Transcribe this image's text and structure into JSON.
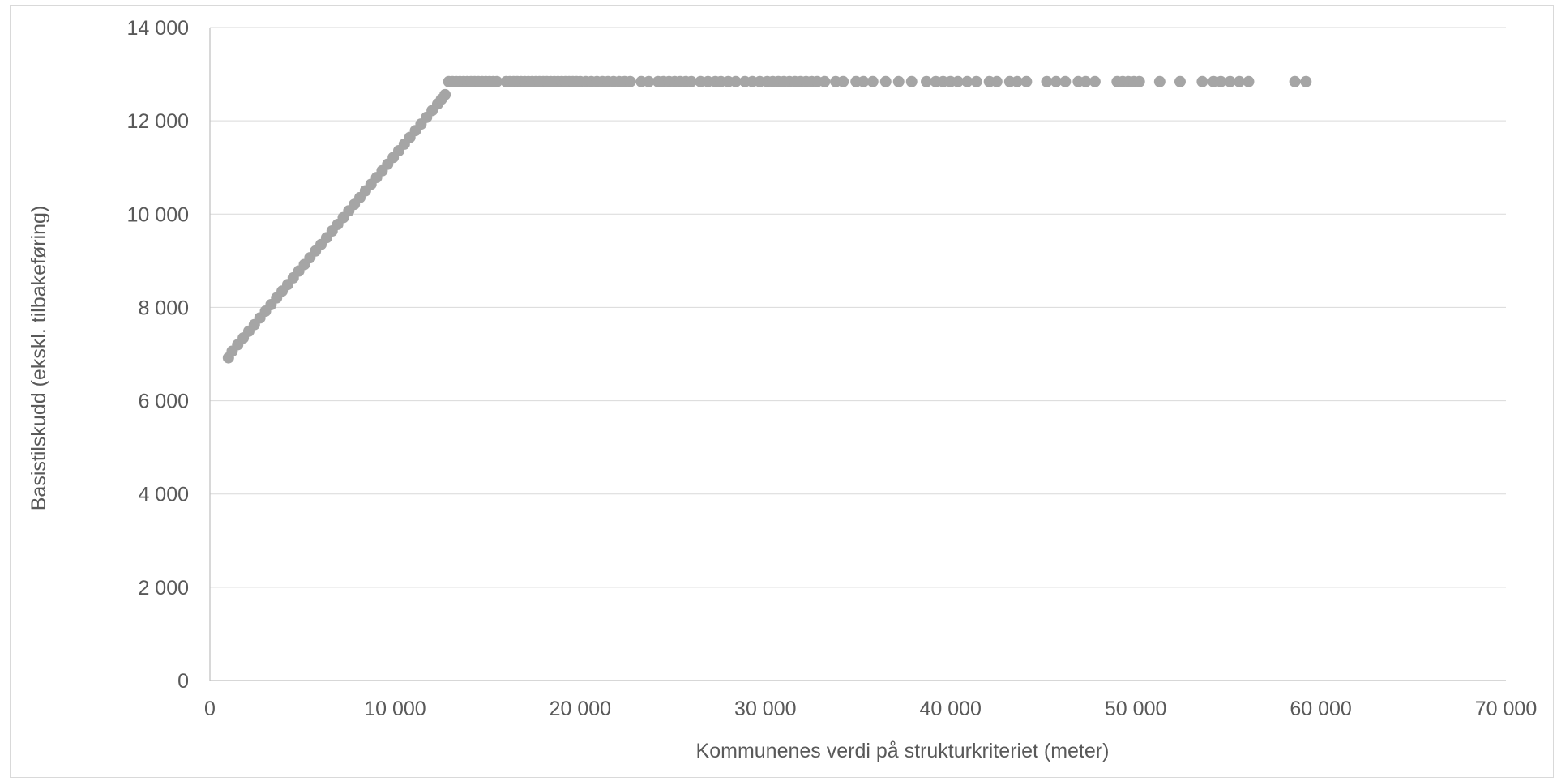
{
  "chart_data": {
    "type": "scatter",
    "title": "",
    "xlabel": "Kommunenes  verdi på strukturkriteriet (meter)",
    "ylabel": "Basistilskudd (ekskl. tilbakeføring)",
    "xlim": [
      0,
      70000
    ],
    "ylim": [
      0,
      14000
    ],
    "x_ticks": [
      0,
      10000,
      20000,
      30000,
      40000,
      50000,
      60000,
      70000
    ],
    "x_tick_labels": [
      "0",
      "10 000",
      "20 000",
      "30 000",
      "40 000",
      "50 000",
      "60 000",
      "70 000"
    ],
    "y_ticks": [
      0,
      2000,
      4000,
      6000,
      8000,
      10000,
      12000,
      14000
    ],
    "y_tick_labels": [
      "0",
      "2 000",
      "4 000",
      "6 000",
      "8 000",
      "10 000",
      "12 000",
      "14 000"
    ],
    "grid": "horizontal",
    "legend": "none",
    "marker_color": "#a5a5a5",
    "series": [
      {
        "ramp": {
          "x": [
            1000,
            1200,
            1500,
            1800,
            2100,
            2400,
            2700,
            3000,
            3300,
            3600,
            3900,
            4200,
            4500,
            4800,
            5100,
            5400,
            5700,
            6000,
            6300,
            6600,
            6900,
            7200,
            7500,
            7800,
            8100,
            8400,
            8700,
            9000,
            9300,
            9600,
            9900,
            10200,
            10500,
            10800,
            11100,
            11400,
            11700,
            12000,
            12300,
            12500,
            12700
          ],
          "y": [
            6920,
            7060,
            7200,
            7345,
            7490,
            7630,
            7775,
            7920,
            8060,
            8205,
            8350,
            8490,
            8635,
            8780,
            8920,
            9065,
            9210,
            9350,
            9495,
            9640,
            9780,
            9925,
            10070,
            10210,
            10355,
            10500,
            10640,
            10785,
            10930,
            11070,
            11215,
            11360,
            11500,
            11645,
            11790,
            11930,
            12075,
            12220,
            12360,
            12460,
            12560
          ]
        },
        "plateau": {
          "y": 12840,
          "x": [
            12900,
            13100,
            13300,
            13500,
            13700,
            13900,
            14100,
            14300,
            14500,
            14700,
            14900,
            15100,
            15300,
            15500,
            16000,
            16200,
            16400,
            16600,
            16800,
            17000,
            17200,
            17400,
            17600,
            17800,
            18000,
            18200,
            18400,
            18600,
            18800,
            19000,
            19200,
            19400,
            19600,
            19800,
            20000,
            20300,
            20600,
            20900,
            21200,
            21500,
            21800,
            22100,
            22400,
            22700,
            23300,
            23700,
            24200,
            24500,
            24800,
            25100,
            25400,
            25700,
            26000,
            26500,
            26900,
            27300,
            27600,
            28000,
            28400,
            28900,
            29300,
            29700,
            30100,
            30400,
            30700,
            31000,
            31300,
            31600,
            31900,
            32200,
            32500,
            32800,
            33200,
            33800,
            34200,
            34900,
            35300,
            35800,
            36500,
            37200,
            37900,
            38700,
            39200,
            39600,
            40000,
            40400,
            40900,
            41400,
            42100,
            42500,
            43200,
            43600,
            44100,
            45200,
            45700,
            46200,
            46900,
            47300,
            47800,
            49000,
            49300,
            49600,
            49900,
            50200,
            51300,
            52400,
            53600,
            54200,
            54600,
            55100,
            55600,
            56100,
            58600,
            59200
          ]
        }
      }
    ]
  }
}
